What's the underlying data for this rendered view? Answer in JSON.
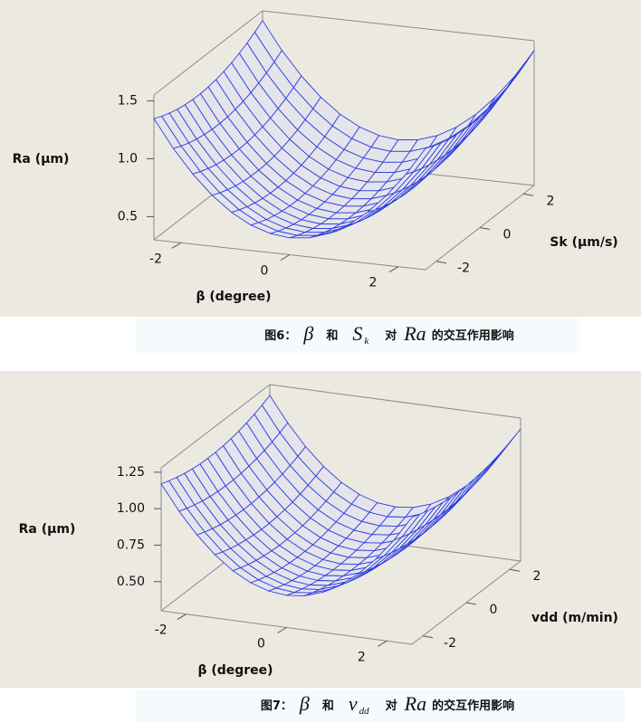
{
  "figures": [
    {
      "z_label": "Ra (µm)",
      "zlim": [
        0.3,
        1.55
      ],
      "z_ticks": [
        0.5,
        {
          "value": 1.0,
          "label": "1.0"
        },
        1.5
      ],
      "x_label": "β (degree)",
      "xlim": [
        -2.5,
        2.5
      ],
      "x_ticks": [
        -2,
        0,
        2
      ],
      "y_label": "Sk (µm/s)",
      "ylim": [
        -2.5,
        2.5
      ],
      "y_ticks": [
        -2,
        0,
        2
      ],
      "caption": {
        "label": "图6：",
        "symbol_1": "β",
        "and": "和",
        "symbol_2": "S",
        "symbol_2_sub": "k",
        "to": "对",
        "symbol_3": "Ra",
        "rest": "的交互作用影响"
      }
    },
    {
      "z_label": "Ra (µm)",
      "zlim": [
        0.3,
        1.28
      ],
      "z_ticks": [
        {
          "value": 0.5,
          "label": "0.50"
        },
        0.75,
        {
          "value": 1.0,
          "label": "1.00"
        },
        1.25
      ],
      "x_label": "β (degree)",
      "xlim": [
        -2.5,
        2.5
      ],
      "x_ticks": [
        -2,
        0,
        2
      ],
      "y_label": "vdd (m/min)",
      "ylim": [
        -2.5,
        2.5
      ],
      "y_ticks": [
        -2,
        0,
        2
      ],
      "caption": {
        "label": "图7：",
        "symbol_1": "β",
        "and": "和",
        "symbol_2": "v",
        "symbol_2_sub": "dd",
        "to": "对",
        "symbol_3": "Ra",
        "rest": "的交互作用影响"
      }
    }
  ]
}
